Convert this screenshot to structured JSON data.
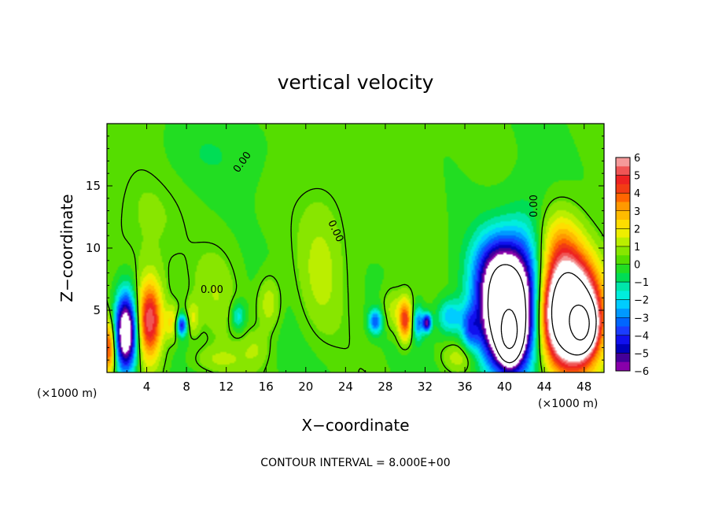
{
  "chart_data": {
    "type": "heatmap",
    "title": "vertical velocity",
    "xlabel": "X−coordinate",
    "ylabel": "Z−coordinate",
    "x_unit_label": "(×1000 m)",
    "footer": "CONTOUR INTERVAL = 8.000E+00",
    "xlim": [
      0,
      50
    ],
    "ylim": [
      0,
      20
    ],
    "x_ticks": [
      "4",
      "8",
      "12",
      "16",
      "20",
      "24",
      "28",
      "32",
      "36",
      "40",
      "44",
      "48"
    ],
    "y_ticks": [
      "5",
      "10",
      "15"
    ],
    "contour_labels": [
      "0.00",
      "0.00",
      "0.00",
      "0.00"
    ],
    "colorbar": {
      "range": [
        -6,
        6
      ],
      "tick_labels": [
        "6",
        "5",
        "4",
        "3",
        "2",
        "1",
        "0",
        "−1",
        "−2",
        "−3",
        "−4",
        "−5",
        "−6"
      ],
      "levels": [
        {
          "lo": 5.5,
          "color": "#f59a9a"
        },
        {
          "lo": 5.0,
          "color": "#f05555"
        },
        {
          "lo": 4.5,
          "color": "#ee2222"
        },
        {
          "lo": 4.0,
          "color": "#f23c14"
        },
        {
          "lo": 3.5,
          "color": "#ff6600"
        },
        {
          "lo": 3.0,
          "color": "#ff9900"
        },
        {
          "lo": 2.5,
          "color": "#ffbb00"
        },
        {
          "lo": 2.0,
          "color": "#ffdd00"
        },
        {
          "lo": 1.5,
          "color": "#eeee00"
        },
        {
          "lo": 1.0,
          "color": "#bbee00"
        },
        {
          "lo": 0.5,
          "color": "#88e600"
        },
        {
          "lo": 0.0,
          "color": "#55dd00"
        },
        {
          "lo": -0.5,
          "color": "#22dd22"
        },
        {
          "lo": -1.0,
          "color": "#00dd55"
        },
        {
          "lo": -1.5,
          "color": "#00e6aa"
        },
        {
          "lo": -2.0,
          "color": "#00eedd"
        },
        {
          "lo": -2.5,
          "color": "#00ccff"
        },
        {
          "lo": -3.0,
          "color": "#0099ff"
        },
        {
          "lo": -3.5,
          "color": "#0066ff"
        },
        {
          "lo": -4.0,
          "color": "#1a3cff"
        },
        {
          "lo": -4.5,
          "color": "#1010ee"
        },
        {
          "lo": -5.0,
          "color": "#0000bb"
        },
        {
          "lo": -5.5,
          "color": "#440099"
        },
        {
          "lo": -6.0,
          "color": "#8800aa"
        }
      ],
      "saturation_color": "#ffffff"
    },
    "features": [
      {
        "x": 46.5,
        "z": 4.8,
        "sx": 2.1,
        "sz": 3.0,
        "amp": 13
      },
      {
        "x": 47.8,
        "z": 3.8,
        "sx": 0.8,
        "sz": 1.2,
        "amp": 12
      },
      {
        "x": 40.4,
        "z": 4.6,
        "sx": 2.0,
        "sz": 3.0,
        "amp": -12
      },
      {
        "x": 40.5,
        "z": 3.0,
        "sx": 0.7,
        "sz": 1.3,
        "amp": -11
      },
      {
        "x": 39.0,
        "z": 8.5,
        "sx": 1.7,
        "sz": 2.2,
        "amp": -3
      },
      {
        "x": 42.2,
        "z": 9.0,
        "sx": 1.6,
        "sz": 3.0,
        "amp": -2
      },
      {
        "x": 1.9,
        "z": 3.2,
        "sx": 0.8,
        "sz": 2.2,
        "amp": -8.5
      },
      {
        "x": 4.3,
        "z": 4.2,
        "sx": 0.9,
        "sz": 2.2,
        "amp": 5.5
      },
      {
        "x": 0.2,
        "z": 2.0,
        "sx": 0.5,
        "sz": 1.6,
        "amp": 4.5
      },
      {
        "x": 30.0,
        "z": 4.2,
        "sx": 0.5,
        "sz": 1.2,
        "amp": 4.5
      },
      {
        "x": 31.3,
        "z": 4.0,
        "sx": 0.4,
        "sz": 0.9,
        "amp": -3
      },
      {
        "x": 32.2,
        "z": 4.0,
        "sx": 0.3,
        "sz": 0.5,
        "amp": -5.5
      },
      {
        "x": 7.5,
        "z": 3.8,
        "sx": 0.4,
        "sz": 0.6,
        "amp": -4.5
      },
      {
        "x": 6.6,
        "z": 4.0,
        "sx": 0.5,
        "sz": 1.0,
        "amp": 2.2
      },
      {
        "x": 8.6,
        "z": 4.3,
        "sx": 0.5,
        "sz": 1.0,
        "amp": 1.5
      },
      {
        "x": 13.2,
        "z": 4.5,
        "sx": 0.5,
        "sz": 0.8,
        "amp": -2.0
      },
      {
        "x": 16.3,
        "z": 5.5,
        "sx": 0.8,
        "sz": 1.5,
        "amp": 1.5
      },
      {
        "x": 27.0,
        "z": 4.1,
        "sx": 0.5,
        "sz": 0.7,
        "amp": -3.5
      },
      {
        "x": 28.7,
        "z": 5.0,
        "sx": 0.7,
        "sz": 1.2,
        "amp": 1.3
      },
      {
        "x": 34.5,
        "z": 4.5,
        "sx": 0.9,
        "sz": 1.0,
        "amp": -2.5
      },
      {
        "x": 36.5,
        "z": 3.5,
        "sx": 0.6,
        "sz": 1.2,
        "amp": -2.5
      },
      {
        "x": 35.5,
        "z": 1.2,
        "sx": 1.2,
        "sz": 0.8,
        "amp": 1.3
      },
      {
        "x": 21.5,
        "z": 8.0,
        "sx": 1.5,
        "sz": 3.5,
        "amp": 1.0
      },
      {
        "x": 11.0,
        "z": 6.5,
        "sx": 1.5,
        "sz": 2.5,
        "amp": 0.8
      },
      {
        "x": 11.0,
        "z": 1.0,
        "sx": 2.0,
        "sz": 0.8,
        "amp": 1.0
      },
      {
        "x": 3.5,
        "z": 12.0,
        "sx": 3.0,
        "sz": 5.0,
        "amp": 0.6
      },
      {
        "x": 25.0,
        "z": 14.0,
        "sx": 6.0,
        "sz": 5.0,
        "amp": 0.3
      },
      {
        "x": 45.5,
        "z": 10.5,
        "sx": 1.5,
        "sz": 2.0,
        "amp": 2.0
      },
      {
        "x": 15.0,
        "z": 2.0,
        "sx": 1.0,
        "sz": 1.0,
        "amp": 0.8
      },
      {
        "x": 10.0,
        "z": 17.5,
        "sx": 4.0,
        "sz": 2.0,
        "amp": -0.5
      }
    ]
  }
}
